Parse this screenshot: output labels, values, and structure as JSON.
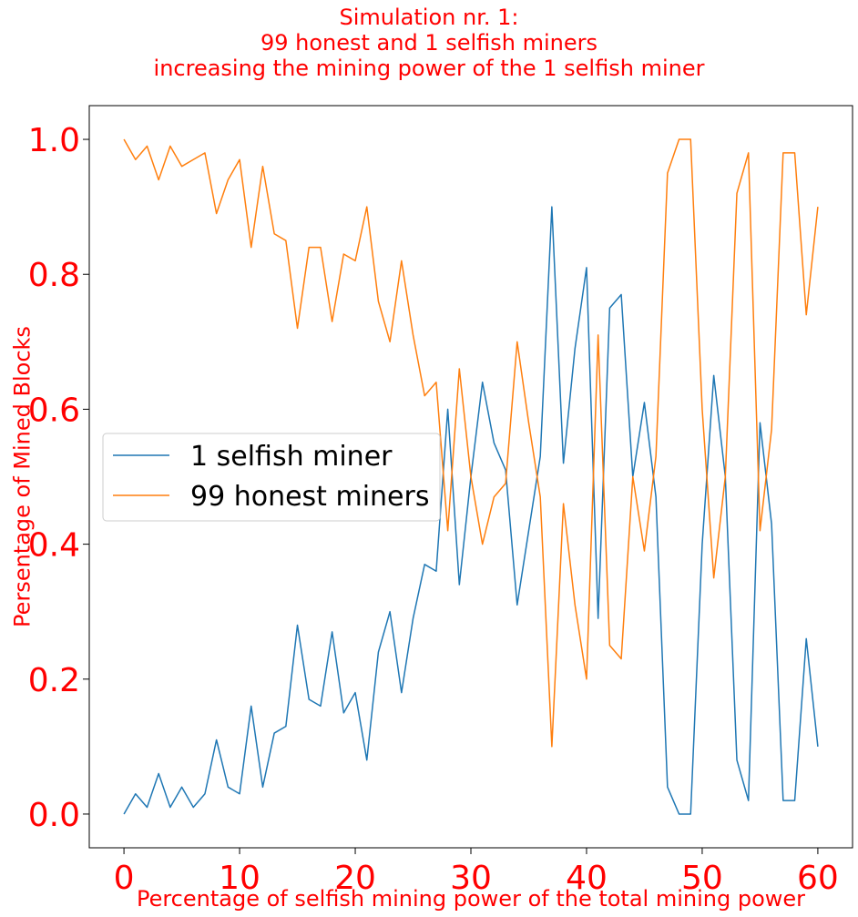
{
  "chart_data": {
    "type": "line",
    "title_lines": [
      "Simulation nr. 1:",
      "99 honest and 1 selfish miners",
      "increasing the mining power of the 1 selfish miner"
    ],
    "xlabel": "Percentage of selfish mining power of the total mining power",
    "ylabel": "Persentage of Mined Blocks",
    "xlim": [
      -3,
      63
    ],
    "ylim": [
      -0.05,
      1.05
    ],
    "x_ticks": [
      0,
      10,
      20,
      30,
      40,
      50,
      60
    ],
    "y_ticks": [
      0.0,
      0.2,
      0.4,
      0.6,
      0.8,
      1.0
    ],
    "x_tick_labels": [
      "0",
      "10",
      "20",
      "30",
      "40",
      "50",
      "60"
    ],
    "y_tick_labels": [
      "0.0",
      "0.2",
      "0.4",
      "0.6",
      "0.8",
      "1.0"
    ],
    "grid": false,
    "legend_position": "center-left",
    "colors": {
      "text": "#ff0000",
      "axis": "#000000"
    },
    "x": [
      0,
      1,
      2,
      3,
      4,
      5,
      6,
      7,
      8,
      9,
      10,
      11,
      12,
      13,
      14,
      15,
      16,
      17,
      18,
      19,
      20,
      21,
      22,
      23,
      24,
      25,
      26,
      27,
      28,
      29,
      30,
      31,
      32,
      33,
      34,
      35,
      36,
      37,
      38,
      39,
      40,
      41,
      42,
      43,
      44,
      45,
      46,
      47,
      48,
      49,
      50,
      51,
      52,
      53,
      54,
      55,
      56,
      57,
      58,
      59,
      60
    ],
    "series": [
      {
        "name": "1 selfish miner",
        "color": "#1f77b4",
        "values": [
          0.0,
          0.03,
          0.01,
          0.06,
          0.01,
          0.04,
          0.01,
          0.03,
          0.11,
          0.04,
          0.03,
          0.16,
          0.04,
          0.12,
          0.13,
          0.28,
          0.17,
          0.16,
          0.27,
          0.15,
          0.18,
          0.08,
          0.24,
          0.3,
          0.18,
          0.29,
          0.37,
          0.36,
          0.6,
          0.34,
          0.5,
          0.64,
          0.55,
          0.51,
          0.31,
          0.42,
          0.53,
          0.9,
          0.52,
          0.69,
          0.81,
          0.29,
          0.75,
          0.77,
          0.5,
          0.61,
          0.47,
          0.04,
          0.0,
          0.0,
          0.4,
          0.65,
          0.5,
          0.08,
          0.02,
          0.58,
          0.43,
          0.02,
          0.02,
          0.26,
          0.1
        ]
      },
      {
        "name": "99 honest miners",
        "color": "#ff7f0e",
        "values": [
          1.0,
          0.97,
          0.99,
          0.94,
          0.99,
          0.96,
          0.97,
          0.98,
          0.89,
          0.94,
          0.97,
          0.84,
          0.96,
          0.86,
          0.85,
          0.72,
          0.84,
          0.84,
          0.73,
          0.83,
          0.82,
          0.9,
          0.76,
          0.7,
          0.82,
          0.71,
          0.62,
          0.64,
          0.42,
          0.66,
          0.5,
          0.4,
          0.47,
          0.49,
          0.7,
          0.58,
          0.47,
          0.1,
          0.46,
          0.31,
          0.2,
          0.71,
          0.25,
          0.23,
          0.5,
          0.39,
          0.53,
          0.95,
          1.0,
          1.0,
          0.6,
          0.35,
          0.5,
          0.92,
          0.98,
          0.42,
          0.57,
          0.98,
          0.98,
          0.74,
          0.9
        ]
      }
    ]
  }
}
